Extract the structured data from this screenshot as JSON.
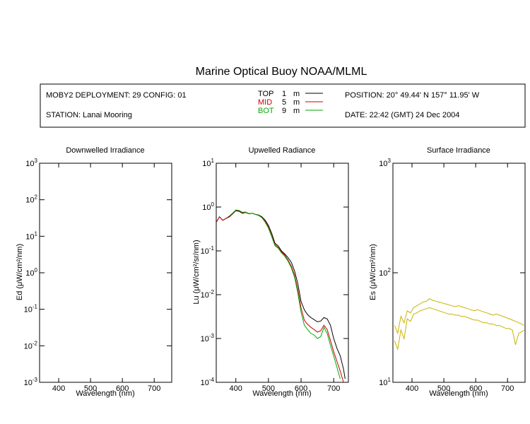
{
  "title": "Marine Optical Buoy NOAA/MLML",
  "info": {
    "deployment": "MOBY2 DEPLOYMENT: 29 CONFIG: 01",
    "station": "STATION: Lanai Mooring",
    "position": "POSITION: 20° 49.44' N   157° 11.95' W",
    "date": "DATE: 22:42 (GMT) 24 Dec 2004"
  },
  "legend": [
    {
      "name": "TOP",
      "depth": "1",
      "unit": "m",
      "color": "#000000"
    },
    {
      "name": "MID",
      "depth": "5",
      "unit": "m",
      "color": "#cc0000"
    },
    {
      "name": "BOT",
      "depth": "9",
      "unit": "m",
      "color": "#00aa00"
    }
  ],
  "colors": {
    "es_series": "#c8b400"
  },
  "chart_data": [
    {
      "type": "line",
      "title": "Downwelled Irradiance",
      "xlabel": "Wavelength (nm)",
      "ylabel": "Ed  (μW/cm²/nm)",
      "xlim": [
        340,
        755
      ],
      "ylim": [
        0.001,
        1000
      ],
      "yscale": "log",
      "xticks": [
        400,
        500,
        600,
        700
      ],
      "yticks": [
        {
          "base": "10",
          "exp": "3"
        },
        {
          "base": "10",
          "exp": "2"
        },
        {
          "base": "10",
          "exp": "1"
        },
        {
          "base": "10",
          "exp": "0"
        },
        {
          "base": "10",
          "exp": "-1"
        },
        {
          "base": "10",
          "exp": "-2"
        },
        {
          "base": "10",
          "exp": "-3"
        }
      ],
      "series": []
    },
    {
      "type": "line",
      "title": "Upwelled Radiance",
      "xlabel": "Wavelength (nm)",
      "ylabel": "Lu  (μW/cm²/sr/nm)",
      "xlim": [
        340,
        745
      ],
      "ylim": [
        0.0001,
        10
      ],
      "yscale": "log",
      "xticks": [
        400,
        500,
        600,
        700
      ],
      "yticks": [
        {
          "base": "10",
          "exp": "1"
        },
        {
          "base": "10",
          "exp": "0"
        },
        {
          "base": "10",
          "exp": "-1"
        },
        {
          "base": "10",
          "exp": "-2"
        },
        {
          "base": "10",
          "exp": "-3"
        },
        {
          "base": "10",
          "exp": "-4"
        }
      ],
      "series": [
        {
          "name": "TOP",
          "x": [
            340,
            350,
            360,
            370,
            380,
            390,
            400,
            410,
            420,
            430,
            440,
            450,
            460,
            470,
            480,
            490,
            500,
            510,
            520,
            530,
            540,
            550,
            560,
            570,
            580,
            590,
            600,
            610,
            620,
            630,
            640,
            650,
            660,
            670,
            680,
            690,
            700,
            710,
            720,
            730,
            735
          ],
          "y": [
            0.45,
            0.6,
            0.5,
            0.55,
            0.6,
            0.7,
            0.82,
            0.8,
            0.72,
            0.75,
            0.7,
            0.72,
            0.68,
            0.66,
            0.6,
            0.5,
            0.38,
            0.25,
            0.15,
            0.13,
            0.1,
            0.085,
            0.07,
            0.055,
            0.035,
            0.018,
            0.007,
            0.0045,
            0.0035,
            0.003,
            0.0027,
            0.0024,
            0.0025,
            0.003,
            0.0028,
            0.002,
            0.001,
            0.0006,
            0.0004,
            0.0002,
            0.00012
          ]
        },
        {
          "name": "MID",
          "x": [
            340,
            350,
            360,
            370,
            380,
            390,
            400,
            410,
            420,
            430,
            440,
            450,
            460,
            470,
            480,
            490,
            500,
            510,
            520,
            530,
            540,
            550,
            560,
            570,
            580,
            590,
            600,
            610,
            620,
            630,
            640,
            650,
            660,
            670,
            680,
            690,
            700,
            710,
            720,
            730
          ],
          "y": [
            0.45,
            0.6,
            0.5,
            0.55,
            0.62,
            0.72,
            0.84,
            0.82,
            0.74,
            0.76,
            0.7,
            0.72,
            0.68,
            0.65,
            0.58,
            0.47,
            0.35,
            0.22,
            0.14,
            0.12,
            0.095,
            0.08,
            0.062,
            0.045,
            0.028,
            0.013,
            0.005,
            0.0026,
            0.0021,
            0.0018,
            0.0016,
            0.0014,
            0.0015,
            0.002,
            0.0016,
            0.0009,
            0.0005,
            0.0003,
            0.00018,
            0.0001
          ]
        },
        {
          "name": "BOT",
          "x": [
            380,
            390,
            400,
            410,
            420,
            430,
            440,
            450,
            460,
            470,
            480,
            490,
            500,
            510,
            520,
            530,
            540,
            550,
            560,
            570,
            580,
            590,
            600,
            610,
            620,
            630,
            640,
            650,
            660,
            670,
            680,
            690,
            700,
            710,
            720
          ],
          "y": [
            0.62,
            0.72,
            0.86,
            0.84,
            0.76,
            0.77,
            0.71,
            0.72,
            0.68,
            0.64,
            0.57,
            0.45,
            0.33,
            0.21,
            0.13,
            0.115,
            0.09,
            0.075,
            0.058,
            0.041,
            0.025,
            0.011,
            0.004,
            0.002,
            0.0016,
            0.0013,
            0.0012,
            0.001,
            0.0011,
            0.0018,
            0.0013,
            0.0007,
            0.0004,
            0.00022,
            0.00012
          ]
        }
      ]
    },
    {
      "type": "line",
      "title": "Surface Irradiance",
      "xlabel": "Wavelength (nm)",
      "ylabel": "Es  (μW/cm²/nm)",
      "xlim": [
        340,
        755
      ],
      "ylim": [
        10,
        1000
      ],
      "yscale": "log",
      "xticks": [
        400,
        500,
        600,
        700
      ],
      "yticks": [
        {
          "base": "10",
          "exp": "3"
        },
        {
          "base": "10",
          "exp": "2"
        },
        {
          "base": "10",
          "exp": "1"
        }
      ],
      "series": [
        {
          "name": "",
          "x": [
            345,
            355,
            365,
            375,
            385,
            395,
            405,
            415,
            425,
            435,
            445,
            455,
            465,
            475,
            485,
            495,
            505,
            515,
            525,
            535,
            545,
            555,
            565,
            575,
            585,
            595,
            605,
            615,
            625,
            635,
            645,
            655,
            665,
            675,
            685,
            695,
            705,
            715,
            725,
            735,
            745,
            752
          ],
          "y": [
            33,
            28,
            40,
            35,
            45,
            43,
            48,
            50,
            52,
            54,
            55,
            58,
            56,
            55,
            54,
            53,
            52,
            51,
            50,
            49,
            50,
            49,
            48,
            47,
            46,
            45,
            46,
            45,
            44,
            43,
            42,
            41,
            42,
            41,
            40,
            39,
            38,
            37,
            36,
            35,
            34,
            33
          ]
        },
        {
          "name": "",
          "x": [
            345,
            355,
            365,
            375,
            385,
            395,
            405,
            415,
            425,
            435,
            445,
            455,
            465,
            475,
            485,
            495,
            505,
            515,
            525,
            535,
            545,
            555,
            565,
            575,
            585,
            595,
            605,
            615,
            625,
            635,
            645,
            655,
            665,
            675,
            685,
            695,
            705,
            715,
            725,
            735,
            745,
            752
          ],
          "y": [
            24,
            20,
            30,
            25,
            38,
            36,
            42,
            43,
            45,
            46,
            47,
            48,
            47,
            46,
            45,
            44,
            43,
            42,
            42,
            41,
            41,
            40,
            40,
            39,
            38,
            37,
            37,
            36,
            35,
            35,
            34,
            34,
            33,
            33,
            32,
            31,
            31,
            30,
            22,
            28,
            29,
            30
          ]
        }
      ]
    }
  ]
}
